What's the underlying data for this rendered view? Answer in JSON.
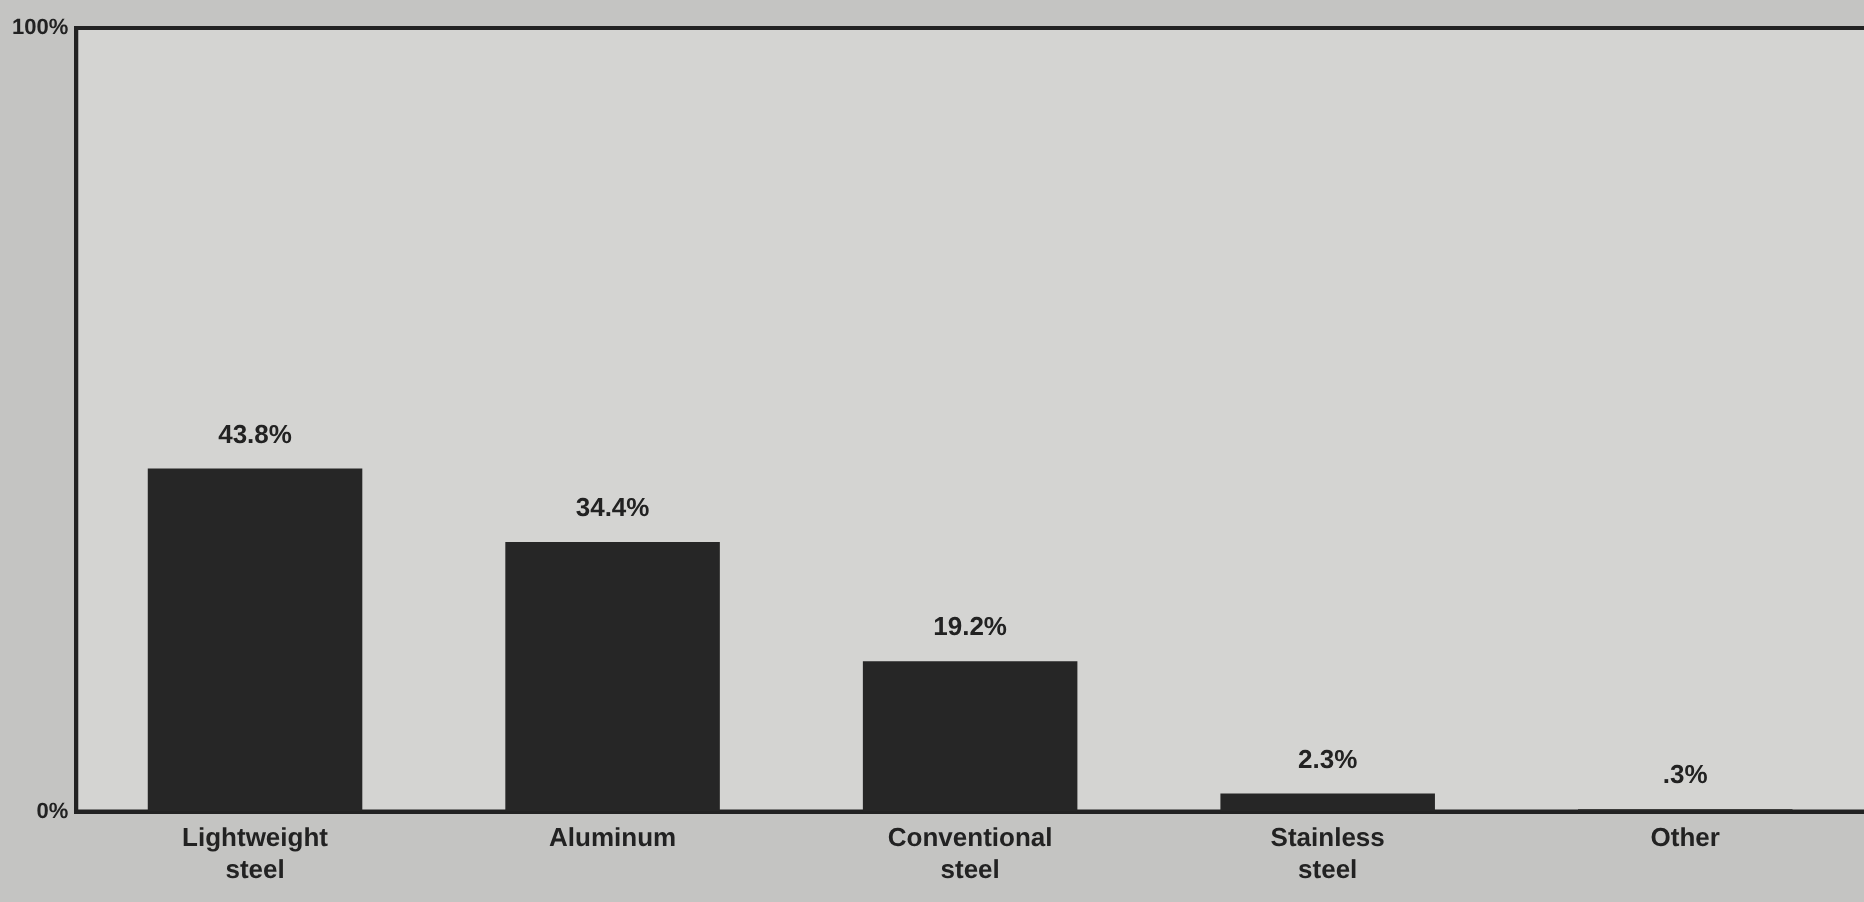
{
  "chart_data": {
    "type": "bar",
    "categories": [
      "Lightweight steel",
      "Aluminum",
      "Conventional steel",
      "Stainless steel",
      "Other"
    ],
    "values": [
      43.8,
      34.4,
      19.2,
      2.3,
      0.3
    ],
    "value_labels": [
      "43.8%",
      "34.4%",
      "19.2%",
      "2.3%",
      ".3%"
    ],
    "color": "#262626",
    "ylim": [
      0,
      100
    ],
    "yticks": [
      {
        "value": 100,
        "label": "100%"
      },
      {
        "value": 0,
        "label": "0%"
      }
    ],
    "legend": false
  }
}
